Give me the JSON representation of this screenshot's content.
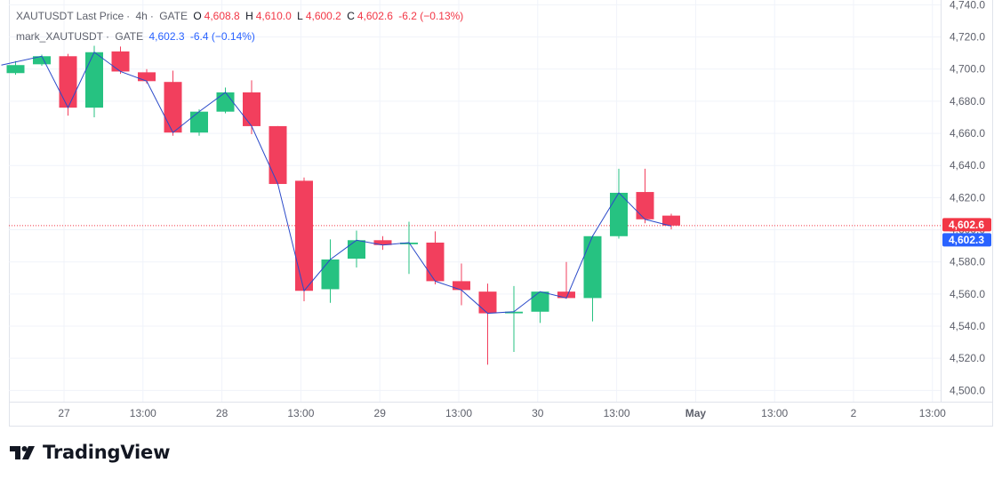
{
  "legend": {
    "symbol": "XAUTUSDT Last Price",
    "interval": "4h",
    "exchange": "GATE",
    "sep": "·",
    "o_label": "O",
    "o_value": "4,608.8",
    "h_label": "H",
    "h_value": "4,610.0",
    "l_label": "L",
    "l_value": "4,600.2",
    "c_label": "C",
    "c_value": "4,602.6",
    "change": "-6.2 (−0.13%)",
    "mark_symbol": "mark_XAUTUSDT",
    "mark_exchange": "GATE",
    "mark_value": "4,602.3",
    "mark_change": "-6.4 (−0.14%)"
  },
  "price_tags": {
    "last": "4,602.6",
    "mark": "4,602.3"
  },
  "brand": {
    "name": "TradingView",
    "logo_icon": "tradingview-logo-icon"
  },
  "colors": {
    "up": "#26c281",
    "down": "#f23f5d",
    "mark_line": "#2b4ac9",
    "last_price_line": "#f23645",
    "mark_tag": "#2962ff",
    "grid": "#f0f3fa"
  },
  "chart_data": {
    "type": "candlestick",
    "ylim": [
      4493,
      4743
    ],
    "y_ticks": [
      "4,500.0",
      "4,520.0",
      "4,540.0",
      "4,560.0",
      "4,580.0",
      "4,600.0",
      "4,620.0",
      "4,640.0",
      "4,660.0",
      "4,680.0",
      "4,700.0",
      "4,720.0",
      "4,740.0"
    ],
    "x_ticks": [
      {
        "label": "27",
        "bold": false
      },
      {
        "label": "13:00",
        "bold": false
      },
      {
        "label": "28",
        "bold": false
      },
      {
        "label": "13:00",
        "bold": false
      },
      {
        "label": "29",
        "bold": false
      },
      {
        "label": "13:00",
        "bold": false
      },
      {
        "label": "30",
        "bold": false
      },
      {
        "label": "13:00",
        "bold": false
      },
      {
        "label": "May",
        "bold": true
      },
      {
        "label": "13:00",
        "bold": false
      },
      {
        "label": "2",
        "bold": false
      },
      {
        "label": "13:00",
        "bold": false
      }
    ],
    "candles": [
      {
        "o": 4697.5,
        "h": 4705.0,
        "l": 4696.5,
        "c": 4702.5
      },
      {
        "o": 4703.0,
        "h": 4709.0,
        "l": 4702.0,
        "c": 4708.0
      },
      {
        "o": 4708.0,
        "h": 4709.5,
        "l": 4671.0,
        "c": 4676.0
      },
      {
        "o": 4676.0,
        "h": 4714.5,
        "l": 4670.0,
        "c": 4710.5
      },
      {
        "o": 4711.0,
        "h": 4714.0,
        "l": 4697.0,
        "c": 4698.5
      },
      {
        "o": 4698.0,
        "h": 4700.0,
        "l": 4691.0,
        "c": 4692.5
      },
      {
        "o": 4692.0,
        "h": 4699.0,
        "l": 4658.5,
        "c": 4660.5
      },
      {
        "o": 4660.5,
        "h": 4675.0,
        "l": 4658.5,
        "c": 4673.5
      },
      {
        "o": 4673.5,
        "h": 4688.5,
        "l": 4672.5,
        "c": 4685.5
      },
      {
        "o": 4685.5,
        "h": 4693.0,
        "l": 4659.5,
        "c": 4664.5
      },
      {
        "o": 4664.5,
        "h": 4664.5,
        "l": 4628.0,
        "c": 4628.5
      },
      {
        "o": 4630.5,
        "h": 4632.5,
        "l": 4555.5,
        "c": 4562.0
      },
      {
        "o": 4563.0,
        "h": 4594.0,
        "l": 4554.5,
        "c": 4581.5
      },
      {
        "o": 4582.0,
        "h": 4599.5,
        "l": 4576.5,
        "c": 4593.5
      },
      {
        "o": 4593.5,
        "h": 4596.0,
        "l": 4587.5,
        "c": 4590.5
      },
      {
        "o": 4591.0,
        "h": 4605.0,
        "l": 4572.5,
        "c": 4592.0
      },
      {
        "o": 4592.0,
        "h": 4599.0,
        "l": 4566.0,
        "c": 4568.0
      },
      {
        "o": 4568.0,
        "h": 4579.0,
        "l": 4553.0,
        "c": 4562.5
      },
      {
        "o": 4561.5,
        "h": 4566.5,
        "l": 4516.0,
        "c": 4548.0
      },
      {
        "o": 4548.0,
        "h": 4565.0,
        "l": 4524.0,
        "c": 4549.0
      },
      {
        "o": 4549.0,
        "h": 4561.5,
        "l": 4542.0,
        "c": 4561.5
      },
      {
        "o": 4561.5,
        "h": 4580.0,
        "l": 4557.0,
        "c": 4557.5
      },
      {
        "o": 4557.5,
        "h": 4596.5,
        "l": 4543.0,
        "c": 4596.0
      },
      {
        "o": 4596.0,
        "h": 4638.0,
        "l": 4594.5,
        "c": 4623.0
      },
      {
        "o": 4623.5,
        "h": 4638.0,
        "l": 4604.0,
        "c": 4606.5
      },
      {
        "o": 4608.8,
        "h": 4610.0,
        "l": 4600.2,
        "c": 4602.6
      }
    ],
    "mark_series": [
      4702.5,
      4708.0,
      4676.0,
      4710.5,
      4698.5,
      4692.5,
      4660.5,
      4673.5,
      4685.5,
      4664.5,
      4628.5,
      4562.0,
      4581.5,
      4593.5,
      4590.5,
      4592.0,
      4568.0,
      4562.5,
      4548.0,
      4549.0,
      4561.5,
      4557.5,
      4596.0,
      4623.0,
      4606.5,
      4602.3
    ],
    "last_price": 4602.6,
    "mark_price": 4602.3,
    "grid": true
  }
}
